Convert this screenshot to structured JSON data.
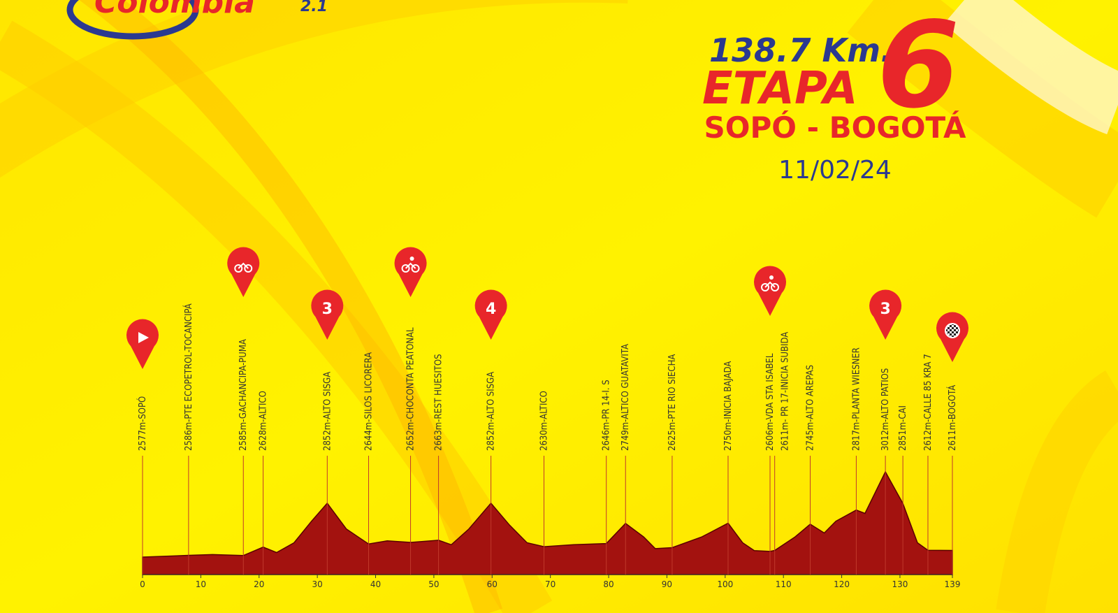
{
  "logo": {
    "brand": "Colombia",
    "edition": "2.1"
  },
  "header": {
    "distance": "138.7 Km.",
    "stage_word": "ETAPA",
    "stage_number": "6",
    "route": "SOPÓ - BOGOTÁ",
    "date": "11/02/24"
  },
  "chart_data": {
    "type": "area",
    "color": "#a3120f",
    "x": [
      0,
      7.9,
      12,
      17.3,
      20.7,
      23,
      26,
      29,
      31.7,
      35,
      38.8,
      42,
      46,
      50.8,
      53,
      56,
      59.8,
      63,
      66,
      68.9,
      74,
      79.6,
      82.9,
      86,
      88,
      90.9,
      96,
      100.5,
      103,
      105,
      107.7,
      108.5,
      112,
      114.6,
      117,
      119,
      122.5,
      124,
      127.5,
      130.5,
      133,
      134.8,
      139
    ],
    "values": [
      2577,
      2586,
      2590,
      2585,
      2628,
      2600,
      2650,
      2760,
      2852,
      2720,
      2644,
      2660,
      2652,
      2663,
      2640,
      2720,
      2852,
      2740,
      2650,
      2630,
      2640,
      2646,
      2749,
      2680,
      2620,
      2625,
      2680,
      2750,
      2650,
      2610,
      2606,
      2611,
      2680,
      2745,
      2700,
      2760,
      2817,
      2800,
      3012,
      2851,
      2650,
      2612,
      2611
    ],
    "xlim": [
      0,
      139
    ],
    "xticks": [
      0,
      10,
      20,
      30,
      40,
      50,
      60,
      70,
      80,
      90,
      100,
      110,
      120,
      130,
      139
    ],
    "waypoints": [
      {
        "km": 0,
        "label": "2577m-SOPÓ"
      },
      {
        "km": 7.9,
        "label": "2586m-PTE ECOPETROL-TOCANCIPÁ"
      },
      {
        "km": 17.3,
        "label": "2585m-GACHANCIPA-PUMA"
      },
      {
        "km": 20.7,
        "label": "2628m-ALTICO"
      },
      {
        "km": 31.7,
        "label": "2852m-ALTO SISGA"
      },
      {
        "km": 38.8,
        "label": "2644m-SILOS LICORERA"
      },
      {
        "km": 46,
        "label": "2652m-CHOCONTA PEATONAL"
      },
      {
        "km": 50.8,
        "label": "2663m-REST HUESITOS"
      },
      {
        "km": 59.8,
        "label": "2852m-ALTO SISGA"
      },
      {
        "km": 68.9,
        "label": "2630m-ALTICO"
      },
      {
        "km": 79.6,
        "label": "2646m-PR 14-I. S"
      },
      {
        "km": 82.9,
        "label": "2749m-ALTICO GUATAVITA"
      },
      {
        "km": 90.9,
        "label": "2625m-PTE RIO SIECHA"
      },
      {
        "km": 100.5,
        "label": "2750m-INICIA BAJADA"
      },
      {
        "km": 107.7,
        "label": "2606m-VDA STA ISABEL"
      },
      {
        "km": 108.5,
        "label": "2611m- PR 17-INICIA SUBIDA"
      },
      {
        "km": 114.6,
        "label": "2745m-ALTO AREPAS"
      },
      {
        "km": 122.5,
        "label": "2817m-PLANTA WIESNER"
      },
      {
        "km": 127.5,
        "label": "3012m-ALTO PATIOS"
      },
      {
        "km": 130.5,
        "label": "2851m-CAI"
      },
      {
        "km": 134.8,
        "label": "2612m-CALLE 85 KRA 7"
      },
      {
        "km": 139,
        "label": "2611m-BOGOTÁ"
      }
    ],
    "markers": [
      {
        "km": 0,
        "icon": "play"
      },
      {
        "km": 17.3,
        "icon": "sprint"
      },
      {
        "km": 31.7,
        "label": "3"
      },
      {
        "km": 46,
        "icon": "bike"
      },
      {
        "km": 59.8,
        "label": "4"
      },
      {
        "km": 107.7,
        "icon": "bike"
      },
      {
        "km": 127.5,
        "label": "3"
      },
      {
        "km": 139,
        "icon": "finish"
      }
    ]
  }
}
